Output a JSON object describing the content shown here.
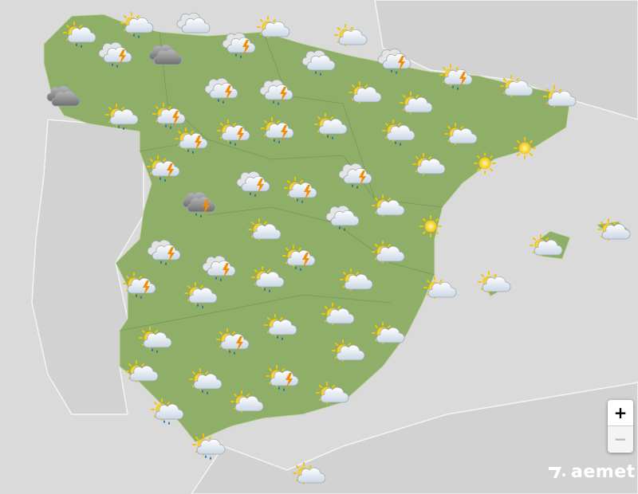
{
  "map": {
    "colors": {
      "sea": "#dadada",
      "other_land": "#d2d2d2",
      "spain_land": "#8fae68",
      "borders": "#f4f4f4"
    },
    "forecast_icons": [
      "sun-cloud-rain",
      "sun-cloud-rain",
      "cloud",
      "sun-cloud",
      "sun-cloud",
      "cloud-storm",
      "dark-cloud",
      "cloud-storm",
      "cloud-rain",
      "cloud-storm",
      "sun-cloud-storm",
      "sun-cloud",
      "sun-cloud",
      "dark-cloud",
      "sun-cloud-rain",
      "sun-cloud-storm",
      "cloud-storm",
      "cloud-storm",
      "sun-cloud",
      "sun-cloud",
      "sun-cloud-storm",
      "sun-cloud-storm",
      "sun-cloud-storm",
      "sun-cloud-rain",
      "sun-cloud-rain",
      "sun-cloud",
      "sun",
      "sun",
      "sun-cloud-storm",
      "sun-cloud",
      "cloud-storm",
      "sun-cloud-storm",
      "cloud-storm",
      "dark-cloud-storm",
      "cloud-rain",
      "sun-cloud",
      "sun",
      "sun-cloud",
      "sun-cloud",
      "sun-cloud",
      "cloud-storm",
      "cloud-storm",
      "sun-cloud-storm",
      "sun-cloud",
      "sun-cloud-storm",
      "sun-cloud-rain",
      "sun-cloud-rain",
      "sun-cloud",
      "sun-cloud",
      "sun-cloud",
      "sun-cloud",
      "sun-cloud-rain",
      "sun-cloud-rain",
      "sun-cloud-storm",
      "sun-cloud",
      "sun-cloud",
      "sun-cloud",
      "sun-cloud-rain",
      "sun-cloud-storm",
      "sun-cloud",
      "sun-cloud",
      "sun-cloud-rain",
      "sun-cloud-rain",
      "sun-cloud"
    ]
  },
  "controls": {
    "zoom_in": "+",
    "zoom_out": "−"
  },
  "logo": {
    "text": "aemet"
  }
}
